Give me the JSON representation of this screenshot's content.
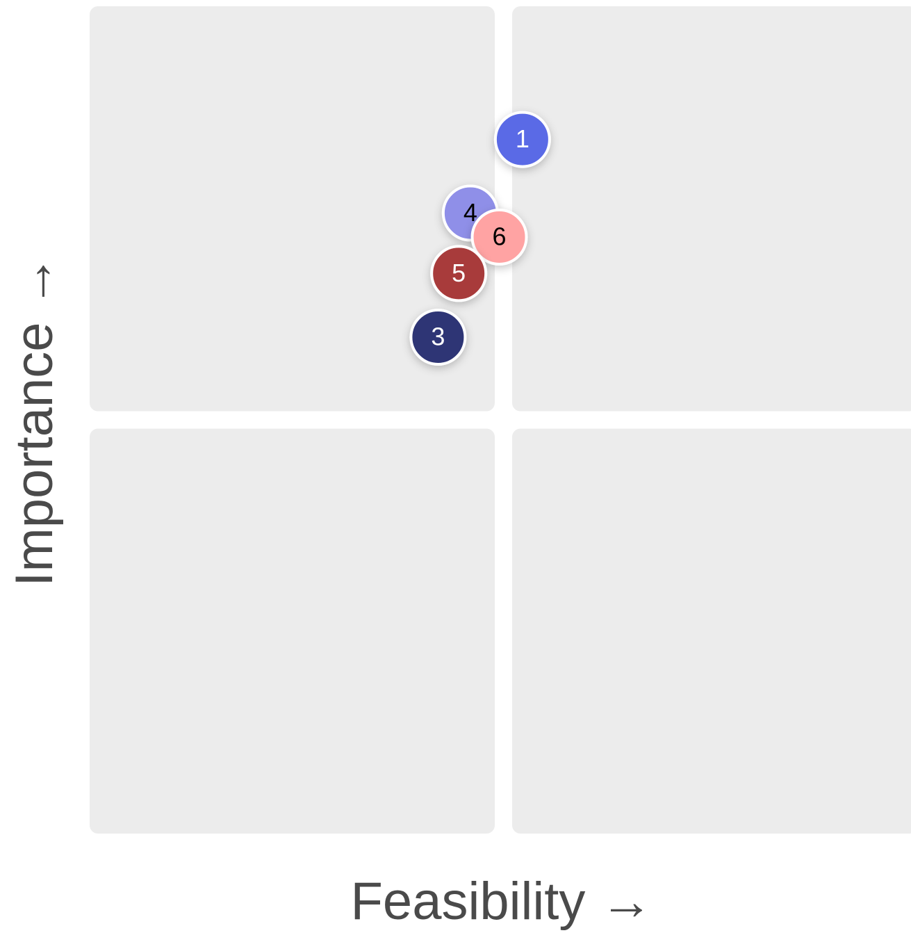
{
  "chart_data": {
    "type": "scatter",
    "xlabel": "Feasibility →",
    "ylabel": "Importance →",
    "xlim": [
      0,
      100
    ],
    "ylim": [
      0,
      100
    ],
    "labels": [
      "1",
      "4",
      "6",
      "5",
      "3"
    ],
    "x": [
      52.3,
      46.0,
      49.5,
      44.6,
      42.1
    ],
    "y": [
      83.9,
      75.0,
      72.1,
      67.7,
      60.0
    ],
    "colors": [
      "#5a6ae6",
      "#8f8fe8",
      "#ffa3a3",
      "#a83a3a",
      "#2e3575"
    ],
    "label_colors": [
      "#ffffff",
      "#000000",
      "#000000",
      "#ffffff",
      "#ffffff"
    ]
  }
}
